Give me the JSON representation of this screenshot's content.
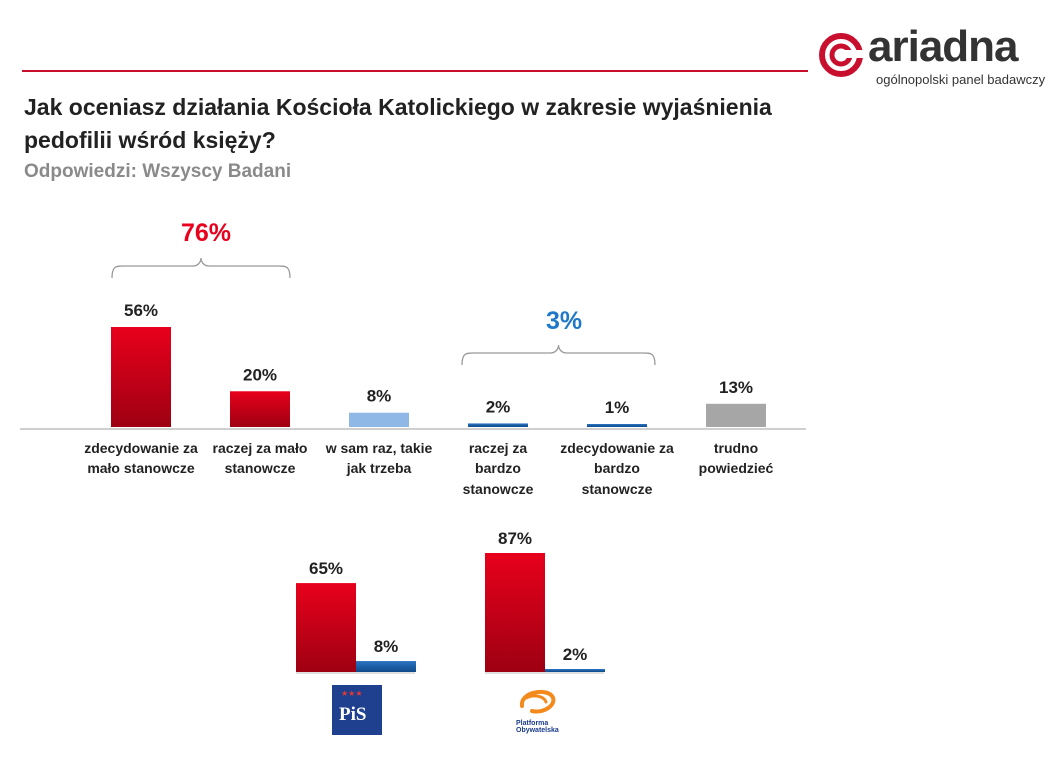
{
  "header": {
    "logo_name": "ariadna",
    "logo_tagline": "ogólnopolski panel badawczy",
    "title": "Jak oceniasz działania Kościoła Katolickiego w zakresie wyjaśnienia pedofilii wśród księży?",
    "subtitle": "Odpowiedzi: Wszyscy Badani"
  },
  "groups": [
    {
      "label": "76%",
      "color": "#e8001c"
    },
    {
      "label": "3%",
      "color": "#1f78c8"
    }
  ],
  "colors": {
    "red": "#e8001c",
    "light_blue": "#8fb8e6",
    "blue": "#1a5ea8",
    "gray": "#a6a6a6"
  },
  "chart_data": [
    {
      "type": "bar",
      "categories": [
        "zdecydowanie za mało stanowcze",
        "raczej za mało stanowcze",
        "w sam raz, takie jak trzeba",
        "raczej za bardzo stanowcze",
        "zdecydowanie za bardzo stanowcze",
        "trudno powiedzieć"
      ],
      "values": [
        56,
        20,
        8,
        2,
        1,
        13
      ],
      "value_labels": [
        "56%",
        "20%",
        "8%",
        "2%",
        "1%",
        "13%"
      ],
      "bar_colors": [
        "red",
        "red",
        "light_blue",
        "blue",
        "blue",
        "gray"
      ],
      "title": "",
      "xlabel": "",
      "ylabel": "",
      "ylim": [
        0,
        56
      ],
      "grid": false
    },
    {
      "type": "bar",
      "groups": [
        {
          "logo": "PiS",
          "values": [
            65,
            8
          ],
          "value_labels": [
            "65%",
            "8%"
          ]
        },
        {
          "logo": "Platforma Obywatelska",
          "values": [
            87,
            2
          ],
          "value_labels": [
            "87%",
            "2%"
          ]
        }
      ],
      "bar_colors": [
        "red",
        "blue"
      ],
      "ylim": [
        0,
        87
      ]
    }
  ],
  "logos": {
    "pis_text": "PiS",
    "po_text": "Platforma Obywatelska"
  }
}
